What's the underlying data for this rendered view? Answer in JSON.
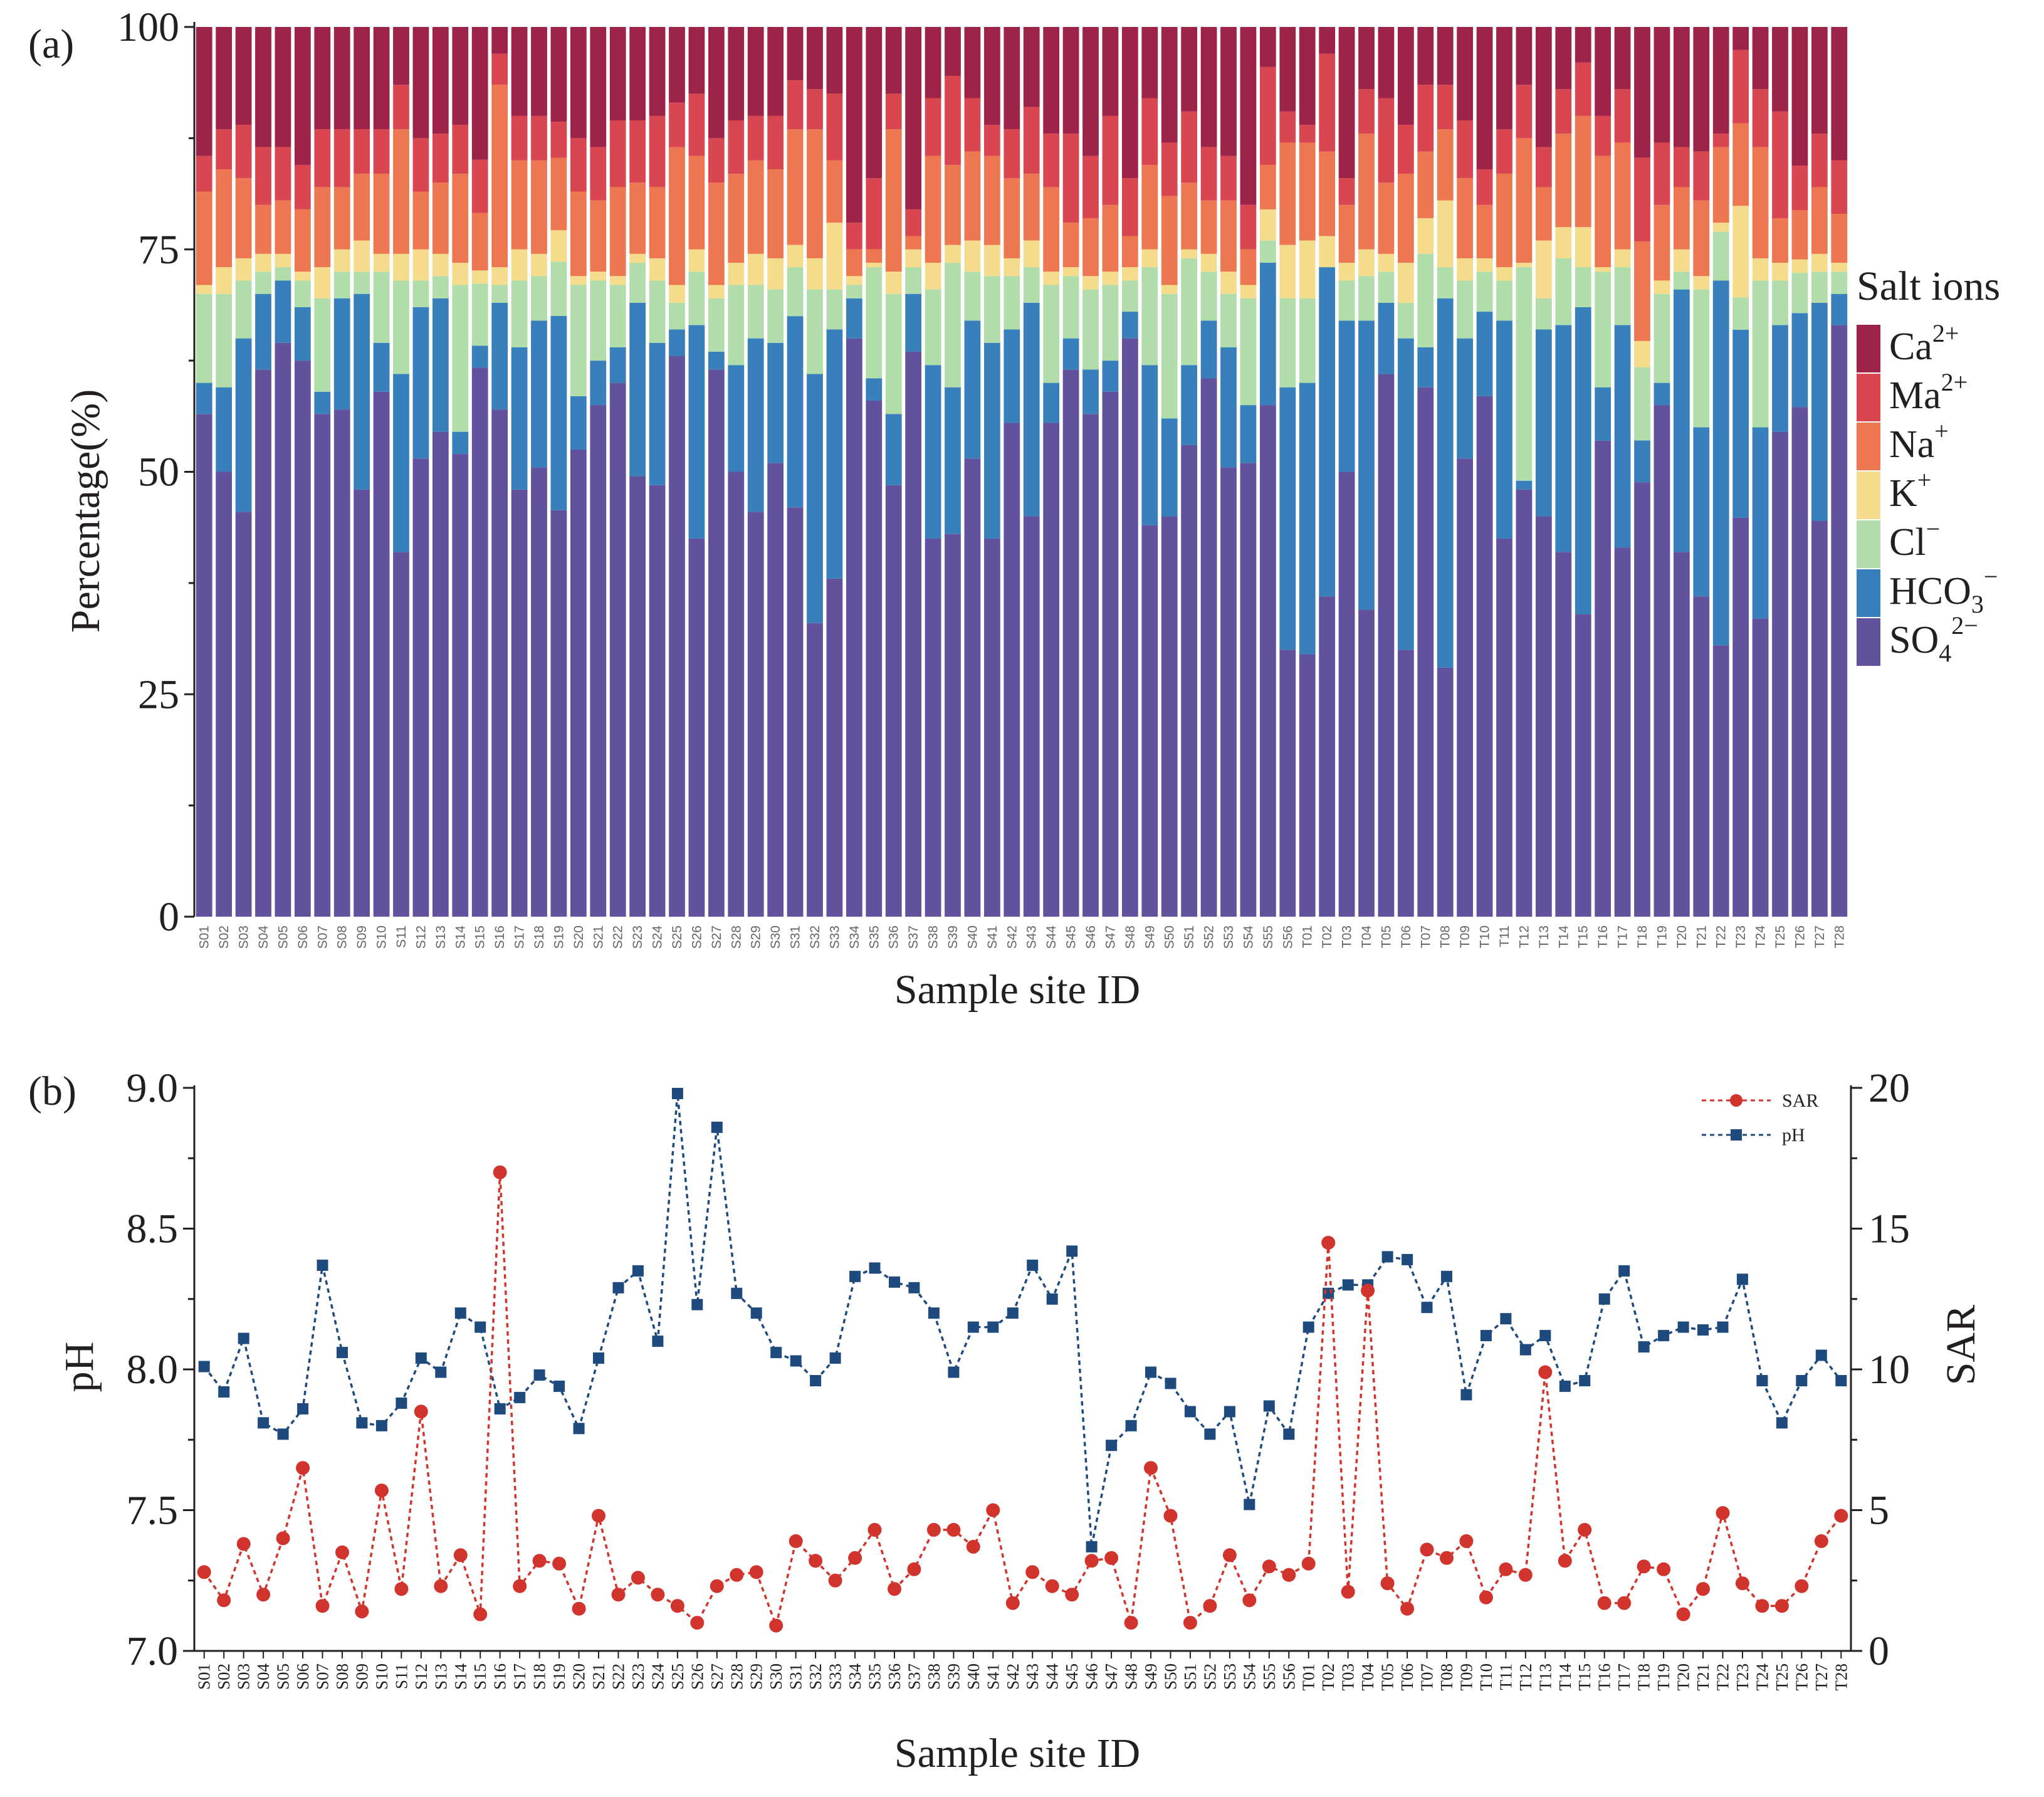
{
  "chart_data": [
    {
      "panel_label": "(a)",
      "type": "bar",
      "stacked": true,
      "xlabel": "Sample site ID",
      "ylabel": "Percentage(%)",
      "ylim": [
        0,
        100
      ],
      "yticks": [
        0,
        25,
        50,
        75,
        100
      ],
      "legend": {
        "title": "Salt ions",
        "placement": "right",
        "entries": [
          {
            "base": "Ca",
            "sup": "2+",
            "sub": "",
            "color": "#9e2349"
          },
          {
            "base": "Ma",
            "sup": "2+",
            "sub": "",
            "color": "#d9464f"
          },
          {
            "base": "Na",
            "sup": "+",
            "sub": "",
            "color": "#ec7751"
          },
          {
            "base": "K",
            "sup": "+",
            "sub": "",
            "color": "#f5dc8c"
          },
          {
            "base": "Cl",
            "sup": "−",
            "sub": "",
            "color": "#b1ddab"
          },
          {
            "base": "HCO",
            "sup": "−",
            "sub": "3",
            "color": "#3880bb"
          },
          {
            "base": "SO",
            "sup": "2−",
            "sub": "4",
            "color": "#62529e"
          }
        ]
      },
      "categories": [
        "S01",
        "S02",
        "S03",
        "S04",
        "S05",
        "S06",
        "S07",
        "S08",
        "S09",
        "S10",
        "S11",
        "S12",
        "S13",
        "S14",
        "S15",
        "S16",
        "S17",
        "S18",
        "S19",
        "S20",
        "S21",
        "S22",
        "S23",
        "S24",
        "S25",
        "S26",
        "S27",
        "S28",
        "S29",
        "S30",
        "S31",
        "S32",
        "S33",
        "S34",
        "S35",
        "S36",
        "S37",
        "S38",
        "S39",
        "S40",
        "S41",
        "S42",
        "S43",
        "S44",
        "S45",
        "S46",
        "S47",
        "S48",
        "S49",
        "S50",
        "S51",
        "S52",
        "S53",
        "S54",
        "S55",
        "S56",
        "T01",
        "T02",
        "T03",
        "T04",
        "T05",
        "T06",
        "T07",
        "T08",
        "T09",
        "T10",
        "T11",
        "T12",
        "T13",
        "T14",
        "T15",
        "T16",
        "T17",
        "T18",
        "T19",
        "T20",
        "T21",
        "T22",
        "T23",
        "T24",
        "T25",
        "T26",
        "T27",
        "T28"
      ],
      "series": [
        {
          "name": "SO4 2−",
          "values": [
            56.5,
            50,
            45.5,
            61.5,
            64.5,
            62.5,
            56.5,
            57,
            48,
            59,
            41,
            51.5,
            54.5,
            52,
            62,
            57,
            48,
            50.5,
            45,
            52.5,
            57.5,
            60,
            49.5,
            48.5,
            63,
            42.5,
            61.5,
            50,
            45.5,
            51,
            46,
            33,
            38,
            65,
            58,
            48.5,
            63.5,
            42.5,
            43,
            51.5,
            42.5,
            55.5,
            45,
            55.5,
            61.5,
            56.5,
            59,
            65,
            44,
            45,
            53,
            60.5,
            50.5,
            51,
            57.5,
            30,
            29.5,
            36,
            50,
            34.5,
            61,
            30,
            59.5,
            28,
            51.5,
            58.5,
            42.5,
            48,
            45,
            41,
            34,
            53.5,
            41.5,
            41.5,
            57.5,
            41,
            36,
            30.5,
            43.5,
            33.5,
            54.5,
            57,
            44.5,
            66.5
          ]
        },
        {
          "name": "HCO3 −",
          "values": [
            3.5,
            9.5,
            19.5,
            8.5,
            7,
            6,
            2.5,
            12.5,
            22,
            5.5,
            20,
            17,
            15,
            2.5,
            2.5,
            12,
            16,
            16.5,
            21.5,
            6,
            5,
            4,
            19.5,
            16,
            3,
            24,
            2,
            12,
            19.5,
            13.5,
            21.5,
            28,
            28,
            4.5,
            2.5,
            8,
            6.5,
            19.5,
            16.5,
            15.5,
            22,
            10.5,
            24,
            4.5,
            3.5,
            5,
            3.5,
            3,
            18,
            11,
            9,
            6.5,
            13.5,
            6.5,
            16,
            29.5,
            30.5,
            37,
            17,
            32.5,
            8,
            35,
            4.5,
            41.5,
            13.5,
            9.5,
            24.5,
            1,
            21,
            25.5,
            34.5,
            6,
            25,
            4,
            2.5,
            29.5,
            19,
            41,
            20.5,
            21.5,
            12,
            10.5,
            24.5,
            3.5
          ]
        },
        {
          "name": "Cl −",
          "values": [
            10,
            10.5,
            6.5,
            2.5,
            1.5,
            3,
            10.5,
            3,
            2.5,
            8,
            10.5,
            3,
            2.5,
            16.5,
            7,
            2,
            7.5,
            5,
            6,
            12.5,
            9,
            7,
            4.5,
            7,
            3,
            6,
            6,
            9,
            6,
            6,
            5.5,
            9.5,
            4.5,
            1.5,
            12.5,
            13.5,
            3,
            8.5,
            14,
            5.5,
            7.5,
            6,
            4,
            11,
            7,
            9,
            8.5,
            3.5,
            11,
            14,
            12,
            5.5,
            6,
            12,
            2.5,
            10,
            9.5,
            0,
            4.5,
            5,
            3.5,
            4,
            10.5,
            3.5,
            6.5,
            4.5,
            4.5,
            24,
            3.5,
            7.5,
            4.5,
            13,
            6.5,
            7,
            10,
            2,
            15.5,
            5.5,
            3.5,
            16.5,
            5,
            4.5,
            3.5,
            2.5
          ]
        },
        {
          "name": "K +",
          "values": [
            1,
            3,
            2.5,
            2,
            1.5,
            1,
            3.5,
            2.5,
            3.5,
            2,
            3,
            3.5,
            2.5,
            2.5,
            1.5,
            2,
            3.5,
            2.5,
            3.5,
            1,
            1,
            1,
            1,
            2.5,
            2,
            2.5,
            1.5,
            2.5,
            3.5,
            3.5,
            2.5,
            3.5,
            7.5,
            1,
            0.5,
            2.5,
            2,
            3,
            2,
            3.5,
            3.5,
            2,
            3,
            1.5,
            1,
            1.5,
            1.5,
            1.5,
            2,
            1,
            1,
            2,
            2.5,
            1.5,
            3.5,
            6,
            6.5,
            3.5,
            2,
            3,
            2,
            4.5,
            4,
            7.5,
            2.5,
            1.5,
            1.5,
            0.5,
            6.5,
            3.5,
            4.5,
            0.5,
            2,
            2.5,
            1.5,
            2.5,
            1.5,
            1,
            10,
            2.5,
            2,
            1.5,
            2,
            1
          ]
        },
        {
          "name": "Na +",
          "values": [
            10.5,
            11,
            9,
            5.5,
            6,
            7,
            9,
            7,
            7.5,
            9,
            14,
            6.5,
            8,
            10,
            6.5,
            20.5,
            10,
            10.5,
            8,
            9.5,
            8,
            10,
            8,
            8,
            15.5,
            10.5,
            11.5,
            10,
            10.5,
            10,
            13,
            14.5,
            7,
            3,
            1.5,
            16,
            1.5,
            12,
            9,
            10,
            10,
            9,
            7.5,
            9.5,
            5,
            6.5,
            7.5,
            3.5,
            9.5,
            10,
            7.5,
            6,
            8,
            4,
            5,
            11.5,
            11,
            9.5,
            6.5,
            13,
            8,
            10,
            7.5,
            8,
            9,
            6,
            10.5,
            14,
            6,
            10.5,
            12.5,
            12.5,
            12,
            9.5,
            8.5,
            7,
            8.5,
            8.5,
            9,
            12.5,
            5,
            5.5,
            7.5,
            5.5
          ]
        },
        {
          "name": "Ma 2+",
          "values": [
            4,
            4.5,
            6,
            6.5,
            6,
            5,
            6.5,
            6.5,
            5,
            5,
            5,
            6,
            5.5,
            5.5,
            6,
            3.5,
            5,
            5,
            4,
            6,
            6,
            7.5,
            7,
            8,
            5,
            7,
            5,
            6,
            5,
            6,
            5.5,
            4.5,
            7.5,
            3,
            8,
            4,
            3,
            6.5,
            10,
            6,
            3.5,
            5.5,
            7.5,
            6,
            10,
            7,
            10,
            6.5,
            7.5,
            6,
            8,
            6,
            5,
            5,
            11,
            3.5,
            2,
            11,
            3,
            5,
            9.5,
            5.5,
            7.5,
            5,
            6.5,
            4,
            5,
            6,
            4.5,
            5,
            6,
            4.5,
            6,
            8,
            7,
            4.5,
            5.5,
            1.5,
            8,
            6.5,
            12,
            5,
            6,
            6
          ]
        },
        {
          "name": "Ca 2+",
          "values": [
            14.5,
            11.5,
            11,
            13.5,
            13.5,
            15.5,
            11.5,
            11.5,
            11.5,
            11.5,
            6.5,
            12.5,
            12,
            11,
            15,
            3,
            10,
            10,
            10.5,
            12.5,
            13.5,
            10.5,
            10.5,
            10,
            8.5,
            7.5,
            12.5,
            10.5,
            10,
            10,
            6,
            7,
            7.5,
            22,
            17,
            7.5,
            20.5,
            8,
            5.5,
            8,
            11,
            11.5,
            9,
            12,
            12,
            14.5,
            10,
            17,
            8,
            13,
            9.5,
            13.5,
            14.5,
            20,
            4.5,
            9.5,
            11,
            3,
            17,
            7,
            8,
            11,
            6.5,
            6.5,
            10.5,
            16,
            11.5,
            6.5,
            13.5,
            7,
            4,
            10,
            7,
            12.5,
            13,
            13.5,
            14,
            12,
            2.5,
            7,
            9.5,
            15.5,
            12,
            15
          ]
        }
      ]
    },
    {
      "panel_label": "(b)",
      "type": "line",
      "xlabel": "Sample site ID",
      "ylabel": "pH",
      "y2label": "SAR",
      "ylim": [
        7.0,
        9.0
      ],
      "y2lim": [
        0,
        20
      ],
      "yticks": [
        "7.0",
        "7.5",
        "8.0",
        "8.5",
        "9.0"
      ],
      "y2ticks": [
        "0",
        "5",
        "10",
        "15",
        "20"
      ],
      "legend_placement": "top-right",
      "categories": [
        "S01",
        "S02",
        "S03",
        "S04",
        "S05",
        "S06",
        "S07",
        "S08",
        "S09",
        "S10",
        "S11",
        "S12",
        "S13",
        "S14",
        "S15",
        "S16",
        "S17",
        "S18",
        "S19",
        "S20",
        "S21",
        "S22",
        "S23",
        "S24",
        "S25",
        "S26",
        "S27",
        "S28",
        "S29",
        "S30",
        "S31",
        "S32",
        "S33",
        "S34",
        "S35",
        "S36",
        "S37",
        "S38",
        "S39",
        "S40",
        "S41",
        "S42",
        "S43",
        "S44",
        "S45",
        "S46",
        "S47",
        "S48",
        "S49",
        "S50",
        "S51",
        "S52",
        "S53",
        "S54",
        "S55",
        "S56",
        "T01",
        "T02",
        "T03",
        "T04",
        "T05",
        "T06",
        "T07",
        "T08",
        "T09",
        "T10",
        "T11",
        "T12",
        "T13",
        "T14",
        "T15",
        "T16",
        "T17",
        "T18",
        "T19",
        "T20",
        "T21",
        "T22",
        "T23",
        "T24",
        "T25",
        "T26",
        "T27",
        "T28"
      ],
      "series": [
        {
          "name": "SAR",
          "axis": "right",
          "marker": "circle",
          "color": "#d0342c",
          "values": [
            2.8,
            1.8,
            3.8,
            2.0,
            4.0,
            6.5,
            1.6,
            3.5,
            1.4,
            5.7,
            2.2,
            8.5,
            2.3,
            3.4,
            1.3,
            17.0,
            2.3,
            3.2,
            3.1,
            1.5,
            4.8,
            2.0,
            2.6,
            2.0,
            1.6,
            1.0,
            2.3,
            2.7,
            2.8,
            0.9,
            3.9,
            3.2,
            2.5,
            3.3,
            4.3,
            2.2,
            2.9,
            4.3,
            4.3,
            3.7,
            5.0,
            1.7,
            2.8,
            2.3,
            2.0,
            3.2,
            3.3,
            1.0,
            6.5,
            4.8,
            1.0,
            1.6,
            3.4,
            1.8,
            3.0,
            2.7,
            3.1,
            14.5,
            2.1,
            12.8,
            2.4,
            1.5,
            3.6,
            3.3,
            3.9,
            1.9,
            2.9,
            2.7,
            9.9,
            3.2,
            4.3,
            1.7,
            1.7,
            3.0,
            2.9,
            1.3,
            2.2,
            4.9,
            2.4,
            1.6,
            1.6,
            2.3,
            3.9,
            4.8
          ]
        },
        {
          "name": "pH",
          "axis": "left",
          "marker": "square",
          "color": "#1f4a7e",
          "values": [
            8.01,
            7.92,
            8.11,
            7.81,
            7.77,
            7.86,
            8.37,
            8.06,
            7.81,
            7.8,
            7.88,
            8.04,
            7.99,
            8.2,
            8.15,
            7.86,
            7.9,
            7.98,
            7.94,
            7.79,
            8.04,
            8.29,
            8.35,
            8.1,
            8.98,
            8.23,
            8.86,
            8.27,
            8.2,
            8.06,
            8.03,
            7.96,
            8.04,
            8.33,
            8.36,
            8.31,
            8.29,
            8.2,
            7.99,
            8.15,
            8.15,
            8.2,
            8.37,
            8.25,
            8.42,
            7.37,
            7.73,
            7.8,
            7.99,
            7.95,
            7.85,
            7.77,
            7.85,
            7.52,
            7.87,
            7.77,
            8.15,
            8.27,
            8.3,
            8.3,
            8.4,
            8.39,
            8.22,
            8.33,
            7.91,
            8.12,
            8.18,
            8.07,
            8.12,
            7.94,
            7.96,
            8.25,
            8.35,
            8.08,
            8.12,
            8.15,
            8.14,
            8.15,
            8.32,
            7.96,
            7.81,
            7.96,
            8.05,
            7.96
          ]
        }
      ]
    }
  ]
}
